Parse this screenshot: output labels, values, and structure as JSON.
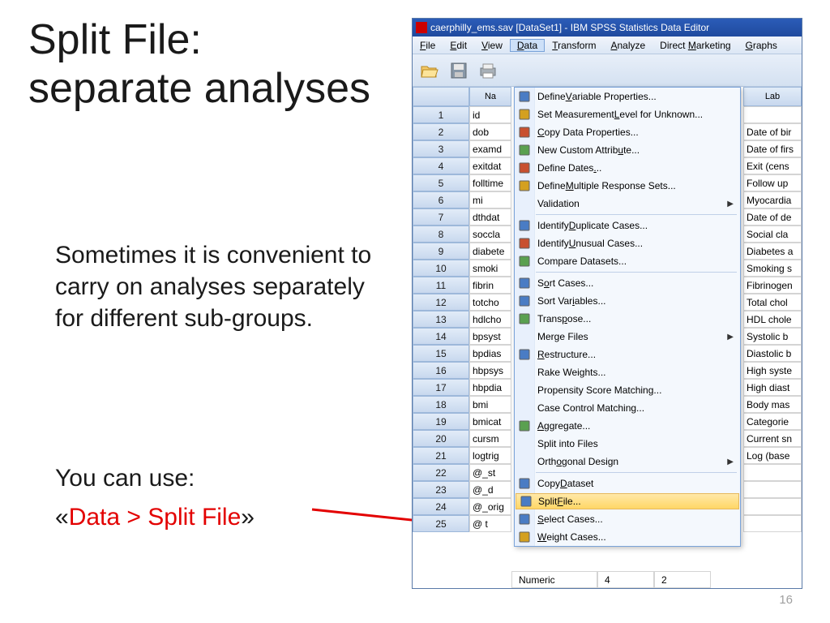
{
  "slide": {
    "title": "Split File:\nseparate analyses",
    "body1": "Sometimes it is convenient to carry on analyses separately for different sub-groups.",
    "body2": "You can use:",
    "body3_pre": "«",
    "body3_red": "Data > Split File",
    "body3_post": "»",
    "page_num": "16"
  },
  "spss": {
    "title": "caerphilly_ems.sav [DataSet1] - IBM SPSS Statistics Data Editor",
    "menus": [
      "File",
      "Edit",
      "View",
      "Data",
      "Transform",
      "Analyze",
      "Direct Marketing",
      "Graphs"
    ],
    "menu_underline_idx": [
      0,
      0,
      0,
      0,
      0,
      0,
      7,
      0
    ],
    "active_menu_idx": 3,
    "col_headers": {
      "rownum": "",
      "name": "Na",
      "label": "Lab"
    },
    "rows": [
      {
        "n": "1",
        "name": "id",
        "label": ""
      },
      {
        "n": "2",
        "name": "dob",
        "label": "Date of bir"
      },
      {
        "n": "3",
        "name": "examd",
        "label": "Date of firs"
      },
      {
        "n": "4",
        "name": "exitdat",
        "label": "Exit (cens"
      },
      {
        "n": "5",
        "name": "folltime",
        "label": "Follow up"
      },
      {
        "n": "6",
        "name": "mi",
        "label": "Myocardia"
      },
      {
        "n": "7",
        "name": "dthdat",
        "label": "Date of de"
      },
      {
        "n": "8",
        "name": "soccla",
        "label": "Social cla"
      },
      {
        "n": "9",
        "name": "diabete",
        "label": "Diabetes a"
      },
      {
        "n": "10",
        "name": "smoki",
        "label": "Smoking s"
      },
      {
        "n": "11",
        "name": "fibrin",
        "label": "Fibrinogen"
      },
      {
        "n": "12",
        "name": "totcho",
        "label": "Total chol"
      },
      {
        "n": "13",
        "name": "hdlcho",
        "label": "HDL chole"
      },
      {
        "n": "14",
        "name": "bpsyst",
        "label": "Systolic b"
      },
      {
        "n": "15",
        "name": "bpdias",
        "label": "Diastolic b"
      },
      {
        "n": "16",
        "name": "hbpsys",
        "label": "High syste"
      },
      {
        "n": "17",
        "name": "hbpdia",
        "label": "High diast"
      },
      {
        "n": "18",
        "name": "bmi",
        "label": "Body mas"
      },
      {
        "n": "19",
        "name": "bmicat",
        "label": "Categorie"
      },
      {
        "n": "20",
        "name": "cursm",
        "label": "Current sn"
      },
      {
        "n": "21",
        "name": "logtrig",
        "label": "Log (base"
      },
      {
        "n": "22",
        "name": "@_st",
        "label": ""
      },
      {
        "n": "23",
        "name": "@_d",
        "label": ""
      },
      {
        "n": "24",
        "name": "@_orig",
        "label": ""
      },
      {
        "n": "25",
        "name": "@ t",
        "label": ""
      }
    ],
    "bottom": {
      "type": "Numeric",
      "w": "4",
      "d": "2"
    },
    "dropdown": [
      {
        "t": "item",
        "label": "Define Variable Properties...",
        "u": 7,
        "icon": "#4a7cc4"
      },
      {
        "t": "item",
        "label": "Set Measurement Level for Unknown...",
        "u": 16,
        "icon": "#d4a020"
      },
      {
        "t": "item",
        "label": "Copy Data Properties...",
        "u": 0,
        "icon": "#c85030"
      },
      {
        "t": "item",
        "label": "New Custom Attribute...",
        "u": 17,
        "icon": "#5aa050"
      },
      {
        "t": "item",
        "label": "Define Dates...",
        "u": 12,
        "icon": "#c85030"
      },
      {
        "t": "item",
        "label": "Define Multiple Response Sets...",
        "u": 7,
        "icon": "#d4a020"
      },
      {
        "t": "item",
        "label": "Validation",
        "sub": true
      },
      {
        "t": "sep"
      },
      {
        "t": "item",
        "label": "Identify Duplicate Cases...",
        "u": 9,
        "icon": "#4a7cc4"
      },
      {
        "t": "item",
        "label": "Identify Unusual Cases...",
        "u": 9,
        "icon": "#c85030"
      },
      {
        "t": "item",
        "label": "Compare Datasets...",
        "icon": "#5aa050"
      },
      {
        "t": "sep"
      },
      {
        "t": "item",
        "label": "Sort Cases...",
        "u": 1,
        "icon": "#4a7cc4"
      },
      {
        "t": "item",
        "label": "Sort Variables...",
        "u": 8,
        "icon": "#4a7cc4"
      },
      {
        "t": "item",
        "label": "Transpose...",
        "u": 5,
        "icon": "#5aa050"
      },
      {
        "t": "item",
        "label": "Merge Files",
        "sub": true
      },
      {
        "t": "item",
        "label": "Restructure...",
        "u": 0,
        "icon": "#4a7cc4"
      },
      {
        "t": "item",
        "label": "Rake Weights..."
      },
      {
        "t": "item",
        "label": "Propensity Score Matching..."
      },
      {
        "t": "item",
        "label": "Case Control Matching..."
      },
      {
        "t": "item",
        "label": "Aggregate...",
        "u": 0,
        "icon": "#5aa050"
      },
      {
        "t": "item",
        "label": "Split into Files"
      },
      {
        "t": "item",
        "label": "Orthogonal Design",
        "u": 4,
        "sub": true
      },
      {
        "t": "sep"
      },
      {
        "t": "item",
        "label": "Copy Dataset",
        "u": 5,
        "icon": "#4a7cc4"
      },
      {
        "t": "item",
        "label": "Split File...",
        "u": 6,
        "icon": "#4a7cc4",
        "hl": true
      },
      {
        "t": "item",
        "label": "Select Cases...",
        "u": 0,
        "icon": "#4a7cc4"
      },
      {
        "t": "item",
        "label": "Weight Cases...",
        "u": 0,
        "icon": "#d4a020"
      }
    ]
  },
  "arrow": {
    "color": "#e30000"
  }
}
